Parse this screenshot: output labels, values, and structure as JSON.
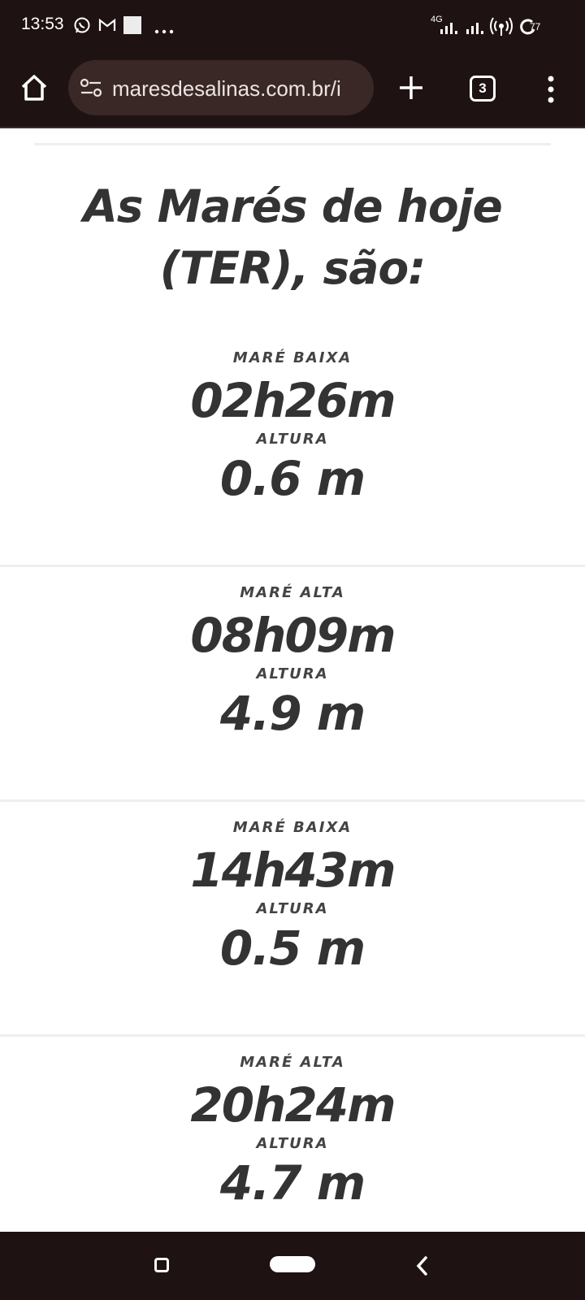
{
  "status_bar": {
    "time": "13:53",
    "network": "4G",
    "battery": "77"
  },
  "browser": {
    "url": "maresdesalinas.com.br/i",
    "tab_count": "3"
  },
  "page": {
    "heading": "As Marés de hoje (TER), são:",
    "tides": [
      {
        "type": "MARÉ BAIXA",
        "time": "02h26m",
        "height_label": "ALTURA",
        "height": "0.6 m"
      },
      {
        "type": "MARÉ ALTA",
        "time": "08h09m",
        "height_label": "ALTURA",
        "height": "4.9 m"
      },
      {
        "type": "MARÉ BAIXA",
        "time": "14h43m",
        "height_label": "ALTURA",
        "height": "0.5 m"
      },
      {
        "type": "MARÉ ALTA",
        "time": "20h24m",
        "height_label": "ALTURA",
        "height": "4.7 m"
      }
    ]
  },
  "colors": {
    "chrome_bg": "#1f1212",
    "omnibox_bg": "#3a2826",
    "text_dark": "#333333"
  }
}
